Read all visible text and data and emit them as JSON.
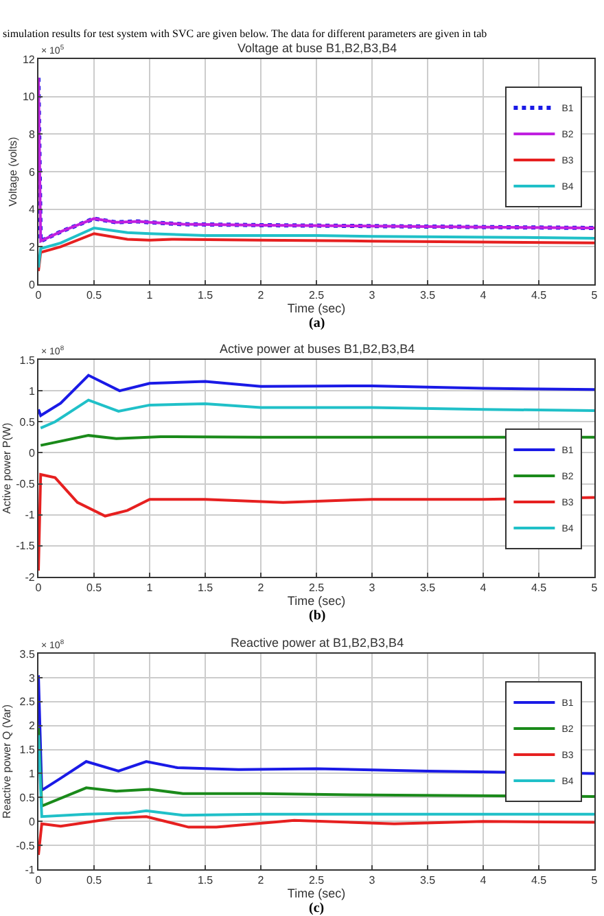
{
  "chart_data": [
    {
      "type": "line",
      "title": "Voltage at buse B1,B2,B3,B4",
      "xlabel": "Time (sec)",
      "ylabel": "Voltage (volts)",
      "annotations": [
        "simulation results for test system with SVC are given below. The data for different parameters are given in tab",
        "× 10$^{5}$",
        "(a)"
      ],
      "xlim": [
        0,
        5
      ],
      "xticks": [
        0,
        0.5,
        1,
        1.5,
        2,
        2.5,
        3,
        3.5,
        4,
        4.5,
        5
      ],
      "ylim": [
        0,
        12
      ],
      "yticks": [
        0,
        2,
        4,
        6,
        8,
        10,
        12
      ],
      "grid": true,
      "legend": "top right",
      "series": [
        {
          "name": "B1",
          "color": "#1a1ae6",
          "line_style": "dotted",
          "x": [
            0,
            0.02,
            0.2,
            0.5,
            0.7,
            0.9,
            1,
            1.3,
            2,
            3,
            4,
            5
          ],
          "values": [
            11,
            2.3,
            2.8,
            3.5,
            3.3,
            3.35,
            3.3,
            3.2,
            3.15,
            3.1,
            3.05,
            3.0
          ]
        },
        {
          "name": "B2",
          "color": "#c020e0",
          "line_style": "solid",
          "x": [
            0,
            0.02,
            0.2,
            0.5,
            0.7,
            0.9,
            1,
            1.3,
            2,
            3,
            4,
            5
          ],
          "values": [
            11,
            2.3,
            2.8,
            3.5,
            3.3,
            3.35,
            3.3,
            3.2,
            3.15,
            3.1,
            3.05,
            3.0
          ]
        },
        {
          "name": "B3",
          "color": "#e62020",
          "line_style": "solid",
          "x": [
            0,
            0.02,
            0.2,
            0.5,
            0.8,
            1,
            1.2,
            2,
            3,
            4,
            5
          ],
          "values": [
            0.7,
            1.7,
            2.0,
            2.7,
            2.4,
            2.35,
            2.4,
            2.35,
            2.3,
            2.25,
            2.2
          ]
        },
        {
          "name": "B4",
          "color": "#20c0c8",
          "line_style": "solid",
          "x": [
            0,
            0.02,
            0.2,
            0.5,
            0.8,
            1,
            1.5,
            2.5,
            3,
            4.3,
            5
          ],
          "values": [
            0.9,
            1.9,
            2.2,
            3.0,
            2.75,
            2.7,
            2.6,
            2.6,
            2.55,
            2.5,
            2.45
          ]
        }
      ]
    },
    {
      "type": "line",
      "title": "Active power at buses B1,B2,B3,B4",
      "xlabel": "Time (sec)",
      "ylabel": "Active power P(W)",
      "annotations": [
        "× 10$^{8}$",
        "(b)"
      ],
      "xlim": [
        0,
        5
      ],
      "xticks": [
        0,
        0.5,
        1,
        1.5,
        2,
        2.5,
        3,
        3.5,
        4,
        4.5,
        5
      ],
      "ylim": [
        -2,
        1.5
      ],
      "yticks": [
        -2,
        -1.5,
        -1,
        -0.5,
        0,
        0.5,
        1,
        1.5
      ],
      "grid": true,
      "legend": "bottom right",
      "series": [
        {
          "name": "B1",
          "color": "#1a1ae6",
          "line_style": "solid",
          "x": [
            0,
            0.02,
            0.2,
            0.45,
            0.73,
            1,
            1.5,
            2,
            3,
            4,
            5
          ],
          "values": [
            0.7,
            0.6,
            0.8,
            1.25,
            1.0,
            1.12,
            1.15,
            1.07,
            1.08,
            1.04,
            1.02
          ]
        },
        {
          "name": "B2",
          "color": "#1a8a1a",
          "line_style": "solid",
          "x": [
            0.02,
            0.45,
            0.7,
            1.1,
            2,
            5
          ],
          "values": [
            0.12,
            0.28,
            0.23,
            0.26,
            0.25,
            0.25
          ]
        },
        {
          "name": "B3",
          "color": "#e62020",
          "line_style": "solid",
          "x": [
            0,
            0.02,
            0.15,
            0.35,
            0.6,
            0.8,
            1,
            1.5,
            2.2,
            3,
            4,
            5
          ],
          "values": [
            -1.9,
            -0.35,
            -0.4,
            -0.8,
            -1.02,
            -0.93,
            -0.75,
            -0.75,
            -0.8,
            -0.75,
            -0.75,
            -0.72
          ]
        },
        {
          "name": "B4",
          "color": "#20c0c8",
          "line_style": "solid",
          "x": [
            0.02,
            0.15,
            0.45,
            0.72,
            1,
            1.5,
            2,
            3,
            4,
            5
          ],
          "values": [
            0.4,
            0.5,
            0.85,
            0.67,
            0.77,
            0.79,
            0.73,
            0.73,
            0.7,
            0.68
          ]
        }
      ]
    },
    {
      "type": "line",
      "title": "Reactive power at B1,B2,B3,B4",
      "xlabel": "Time (sec)",
      "ylabel": "Reactive power Q (Var)",
      "annotations": [
        "× 10$^{8}$",
        "(c)"
      ],
      "xlim": [
        0,
        5
      ],
      "xticks": [
        0,
        0.5,
        1,
        1.5,
        2,
        2.5,
        3,
        3.5,
        4,
        4.5,
        5
      ],
      "ylim": [
        -1,
        3.5
      ],
      "yticks": [
        -1,
        -0.5,
        0,
        0.5,
        1,
        1.5,
        2,
        2.5,
        3,
        3.5
      ],
      "grid": true,
      "legend": "top right",
      "series": [
        {
          "name": "B1",
          "color": "#1a1ae6",
          "line_style": "solid",
          "x": [
            0,
            0.03,
            0.2,
            0.43,
            0.72,
            0.97,
            1.25,
            1.8,
            2.5,
            3.5,
            5
          ],
          "values": [
            3.05,
            0.65,
            0.9,
            1.25,
            1.05,
            1.25,
            1.12,
            1.08,
            1.1,
            1.05,
            1.0
          ]
        },
        {
          "name": "B2",
          "color": "#1a8a1a",
          "line_style": "solid",
          "x": [
            0,
            0.03,
            0.43,
            0.7,
            1,
            1.3,
            2,
            3,
            5
          ],
          "values": [
            1.95,
            0.32,
            0.7,
            0.63,
            0.67,
            0.58,
            0.58,
            0.55,
            0.52
          ]
        },
        {
          "name": "B3",
          "color": "#e62020",
          "line_style": "solid",
          "x": [
            0,
            0.03,
            0.2,
            0.7,
            0.97,
            1.35,
            1.6,
            2.3,
            3.2,
            4,
            5
          ],
          "values": [
            -0.7,
            -0.05,
            -0.1,
            0.07,
            0.1,
            -0.12,
            -0.12,
            0.02,
            -0.05,
            0.0,
            -0.02
          ]
        },
        {
          "name": "B4",
          "color": "#20c0c8",
          "line_style": "solid",
          "x": [
            0,
            0.03,
            0.43,
            0.8,
            0.97,
            1.3,
            2,
            3,
            5
          ],
          "values": [
            1.8,
            0.1,
            0.15,
            0.17,
            0.22,
            0.13,
            0.15,
            0.15,
            0.15
          ]
        }
      ]
    }
  ]
}
